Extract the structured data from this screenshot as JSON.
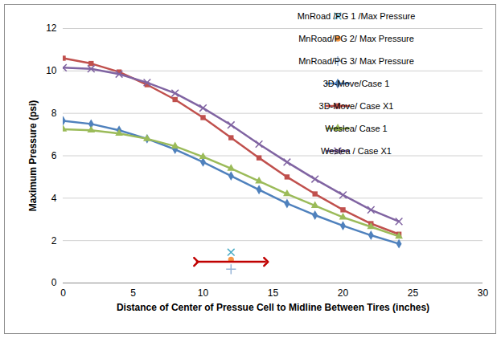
{
  "chart_data": {
    "type": "line",
    "x_label": "Distance of Center of Pressue Cell to Midline Between Tires (inches)",
    "y_label": "Maximum Pressure (psi)",
    "x": [
      0,
      2,
      4,
      6,
      8,
      10,
      12,
      14,
      16,
      18,
      20,
      22,
      24
    ],
    "xlim": [
      0,
      30
    ],
    "xticks": [
      0,
      5,
      10,
      15,
      20,
      25,
      30
    ],
    "ylim": [
      0,
      12
    ],
    "yticks": [
      0,
      2,
      4,
      6,
      8,
      10,
      12
    ],
    "grid": true,
    "legend": "top-right",
    "series": [
      {
        "name": "MnRoad /PG 1 /Max Pressure",
        "type": "scatter",
        "marker": "x",
        "color": "#4bacc6",
        "x": [
          12
        ],
        "values": [
          1.45
        ]
      },
      {
        "name": "MnRoad/PG 2/ Max Pressure",
        "type": "scatter",
        "marker": "circle",
        "color": "#f79646",
        "x": [
          12
        ],
        "values": [
          1.1
        ]
      },
      {
        "name": "MnRoad/PG 3/ Max Pressure",
        "type": "scatter",
        "marker": "plus",
        "color": "#95b3d7",
        "x": [
          12
        ],
        "values": [
          0.65
        ]
      },
      {
        "name": "3D-Move/Case 1",
        "type": "line",
        "marker": "diamond",
        "line_style": "solid",
        "color": "#4f81bd",
        "values": [
          7.65,
          7.5,
          7.2,
          6.8,
          6.3,
          5.7,
          5.05,
          4.4,
          3.75,
          3.2,
          2.7,
          2.25,
          1.85
        ]
      },
      {
        "name": "3D-Move/ Case X1",
        "type": "line",
        "marker": "square",
        "line_style": "solid",
        "color": "#c0504d",
        "values": [
          10.6,
          10.35,
          9.95,
          9.35,
          8.65,
          7.8,
          6.85,
          5.9,
          5.0,
          4.2,
          3.45,
          2.8,
          2.3
        ]
      },
      {
        "name": "Weslea/ Case 1",
        "type": "line",
        "marker": "triangle",
        "line_style": "solid",
        "color": "#9bbb59",
        "values": [
          7.25,
          7.2,
          7.05,
          6.8,
          6.45,
          5.95,
          5.4,
          4.8,
          4.2,
          3.65,
          3.1,
          2.65,
          2.2
        ]
      },
      {
        "name": "Weslea / Case X1",
        "type": "line",
        "marker": "x",
        "line_style": "solid",
        "color": "#8064a2",
        "values": [
          10.15,
          10.1,
          9.85,
          9.45,
          8.95,
          8.25,
          7.45,
          6.55,
          5.7,
          4.9,
          4.15,
          3.45,
          2.9
        ]
      }
    ],
    "range_arrow": {
      "x": [
        9.5,
        14.5
      ],
      "y": 1.0,
      "color": "#c00000"
    }
  }
}
